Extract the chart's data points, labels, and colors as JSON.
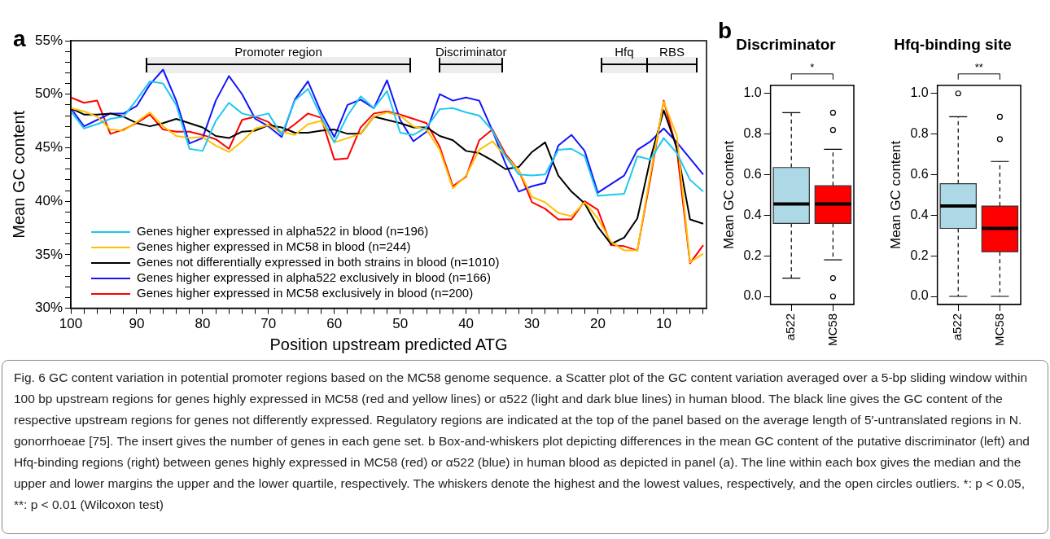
{
  "chart_data": [
    {
      "type": "line",
      "xlabel": "Position upstream predicted ATG",
      "ylabel": "Mean GC content",
      "marker": "none",
      "legend": "bottom left",
      "x": [
        100,
        98,
        96,
        94,
        92,
        90,
        88,
        86,
        84,
        82,
        80,
        78,
        76,
        74,
        72,
        70,
        68,
        66,
        64,
        62,
        60,
        58,
        56,
        54,
        52,
        50,
        48,
        46,
        44,
        42,
        40,
        38,
        36,
        34,
        32,
        30,
        28,
        26,
        24,
        22,
        20,
        18,
        16,
        14,
        12,
        10,
        8,
        6,
        4
      ],
      "xlim": [
        100,
        3.5
      ],
      "ylim": [
        30,
        55
      ],
      "xticks": [
        100,
        {
          "value": 98,
          "label": null
        },
        {
          "value": 96,
          "label": null
        },
        {
          "value": 94,
          "label": null
        },
        {
          "value": 92,
          "label": null
        },
        90,
        {
          "value": 88,
          "label": null
        },
        {
          "value": 86,
          "label": null
        },
        {
          "value": 84,
          "label": null
        },
        {
          "value": 82,
          "label": null
        },
        80,
        {
          "value": 78,
          "label": null
        },
        {
          "value": 76,
          "label": null
        },
        {
          "value": 74,
          "label": null
        },
        {
          "value": 72,
          "label": null
        },
        70,
        {
          "value": 68,
          "label": null
        },
        {
          "value": 66,
          "label": null
        },
        {
          "value": 64,
          "label": null
        },
        {
          "value": 62,
          "label": null
        },
        60,
        {
          "value": 58,
          "label": null
        },
        {
          "value": 56,
          "label": null
        },
        {
          "value": 54,
          "label": null
        },
        {
          "value": 52,
          "label": null
        },
        50,
        {
          "value": 48,
          "label": null
        },
        {
          "value": 46,
          "label": null
        },
        {
          "value": 44,
          "label": null
        },
        {
          "value": 42,
          "label": null
        },
        40,
        {
          "value": 38,
          "label": null
        },
        {
          "value": 36,
          "label": null
        },
        {
          "value": 34,
          "label": null
        },
        {
          "value": 32,
          "label": null
        },
        30,
        {
          "value": 28,
          "label": null
        },
        {
          "value": 26,
          "label": null
        },
        {
          "value": 24,
          "label": null
        },
        {
          "value": 22,
          "label": null
        },
        20,
        {
          "value": 18,
          "label": null
        },
        {
          "value": 16,
          "label": null
        },
        {
          "value": 14,
          "label": null
        },
        {
          "value": 12,
          "label": null
        },
        10,
        {
          "value": 8,
          "label": null
        },
        {
          "value": 6,
          "label": null
        },
        {
          "value": 4,
          "label": null
        }
      ],
      "yticks": [
        {
          "value": 30,
          "label": "30%"
        },
        {
          "value": 31,
          "label": null
        },
        {
          "value": 32,
          "label": null
        },
        {
          "value": 33,
          "label": null
        },
        {
          "value": 34,
          "label": null
        },
        {
          "value": 35,
          "label": "35%"
        },
        {
          "value": 36,
          "label": null
        },
        {
          "value": 37,
          "label": null
        },
        {
          "value": 38,
          "label": null
        },
        {
          "value": 39,
          "label": null
        },
        {
          "value": 40,
          "label": "40%"
        },
        {
          "value": 41,
          "label": null
        },
        {
          "value": 42,
          "label": null
        },
        {
          "value": 43,
          "label": null
        },
        {
          "value": 44,
          "label": null
        },
        {
          "value": 45,
          "label": "45%"
        },
        {
          "value": 46,
          "label": null
        },
        {
          "value": 47,
          "label": null
        },
        {
          "value": 48,
          "label": null
        },
        {
          "value": 49,
          "label": null
        },
        {
          "value": 50,
          "label": "50%"
        },
        {
          "value": 51,
          "label": null
        },
        {
          "value": 52,
          "label": null
        },
        {
          "value": 53,
          "label": null
        },
        {
          "value": 54,
          "label": null
        },
        {
          "value": 55,
          "label": "55%"
        }
      ],
      "bands": [
        {
          "axis": "x",
          "from": 88.5,
          "to": 48.5,
          "label": "Promoter region"
        },
        {
          "axis": "x",
          "from": 44,
          "to": 34.5,
          "label": "Discriminator"
        },
        {
          "axis": "x",
          "from": 19.5,
          "to": 12.5,
          "label": "Hfq"
        },
        {
          "axis": "x",
          "from": 12.5,
          "to": 5,
          "label": "RBS"
        }
      ],
      "series": [
        {
          "name": "Genes higher expressed in alpha522 in blood (n=196)",
          "color": "#1ec8f0",
          "values": [
            48.4,
            46.8,
            47.2,
            47.7,
            47.9,
            49.5,
            51.2,
            51.0,
            49.0,
            44.9,
            44.7,
            47.5,
            49.2,
            48.2,
            47.9,
            48.2,
            46.2,
            49.4,
            50.5,
            47.9,
            45.5,
            48.0,
            49.8,
            48.7,
            50.3,
            46.4,
            46.2,
            46.9,
            48.6,
            48.7,
            48.3,
            48.0,
            46.6,
            44.2,
            42.5,
            42.4,
            42.5,
            44.8,
            44.9,
            44.2,
            40.5,
            40.6,
            40.7,
            44.2,
            43.9,
            45.9,
            44.5,
            42.0,
            40.9
          ]
        },
        {
          "name": "Genes higher expressed in MC58 in blood (n=244)",
          "color": "#ffc000",
          "values": [
            48.7,
            48.4,
            47.9,
            46.7,
            46.6,
            47.4,
            48.3,
            47.0,
            46.1,
            45.9,
            46.0,
            45.2,
            44.6,
            45.6,
            46.8,
            47.1,
            46.5,
            46.2,
            47.2,
            47.5,
            45.5,
            45.9,
            46.3,
            47.9,
            48.3,
            48.0,
            47.0,
            46.7,
            44.8,
            41.2,
            42.4,
            44.8,
            45.6,
            44.2,
            42.9,
            40.4,
            39.9,
            38.9,
            38.6,
            39.9,
            38.4,
            36.2,
            35.4,
            35.4,
            42.6,
            49.3,
            46.1,
            34.3,
            35.1
          ]
        },
        {
          "name": "Genes not differentially expressed in both strains in blood (n=1010)",
          "color": "#000000",
          "values": [
            48.7,
            48.1,
            48.1,
            48.2,
            47.9,
            47.3,
            47.0,
            47.3,
            47.7,
            47.3,
            46.9,
            46.1,
            45.9,
            46.5,
            46.6,
            47.1,
            46.9,
            46.4,
            46.4,
            46.6,
            46.7,
            46.3,
            46.3,
            47.9,
            47.6,
            47.3,
            46.9,
            46.9,
            46.1,
            45.7,
            44.7,
            44.5,
            43.8,
            43.0,
            43.2,
            44.6,
            45.5,
            42.4,
            40.9,
            39.8,
            37.6,
            36.0,
            36.6,
            38.4,
            44.0,
            48.5,
            45.0,
            38.3,
            37.9
          ]
        },
        {
          "name": "Genes higher expressed in alpha522 exclusively in blood (n=166)",
          "color": "#1414ff",
          "values": [
            48.7,
            47.0,
            47.6,
            48.2,
            48.2,
            48.9,
            50.9,
            52.3,
            49.4,
            45.4,
            45.9,
            49.4,
            51.7,
            50.0,
            47.7,
            47.0,
            46.0,
            49.5,
            51.2,
            48.3,
            46.0,
            49.0,
            49.5,
            48.7,
            51.3,
            47.6,
            45.6,
            46.5,
            50.0,
            49.4,
            49.7,
            49.4,
            46.6,
            43.5,
            40.9,
            41.4,
            41.7,
            45.2,
            46.2,
            44.7,
            40.8,
            41.6,
            42.4,
            44.8,
            45.6,
            46.8,
            45.5,
            44.0,
            42.5
          ]
        },
        {
          "name": "Genes higher expressed in MC58 exclusively in blood (n=200)",
          "color": "#ff0000",
          "values": [
            49.7,
            49.2,
            49.4,
            46.3,
            46.7,
            47.3,
            48.1,
            46.7,
            46.5,
            46.5,
            46.2,
            45.8,
            44.9,
            47.6,
            47.9,
            47.4,
            46.3,
            47.2,
            48.2,
            47.8,
            43.9,
            44.0,
            46.9,
            48.2,
            48.4,
            48.1,
            47.7,
            47.3,
            45.1,
            41.4,
            42.3,
            45.7,
            46.7,
            44.4,
            42.9,
            39.9,
            39.3,
            38.3,
            38.3,
            40.0,
            39.2,
            35.9,
            35.8,
            35.4,
            42.2,
            49.4,
            44.8,
            34.2,
            35.9
          ]
        }
      ],
      "annotations": [
        "a",
        "Fig. 6 GC content variation in potential promoter regions based on the MC58 genome sequence. a Scatter plot of the GC content variation averaged over a 5-bp sliding window within 100 bp upstream regions for genes highly expressed in MC58 (red and yellow lines) or α522 (light and dark blue lines) in human blood. The black line gives the GC content of the respective upstream regions for genes not differently expressed. Regulatory regions are indicated at the top of the panel based on the average length of 5′-untranslated regions in N. gonorrhoeae [75]. The insert gives the number of genes in each gene set. b Box-and-whiskers plot depicting differences in the mean GC content of the putative discriminator (left) and Hfq-binding regions (right) between genes highly expressed in MC58 (red) or α522 (blue) in human blood as depicted in panel (a). The line within each box gives the median and the upper and lower margins the upper and the lower quartile, respectively. The whiskers denote the highest and the lowest values, respectively, and the open circles outliers. *: p < 0.05, **: p < 0.01 (Wilcoxon test)"
      ]
    },
    {
      "type": "box",
      "title": "Discriminator",
      "ylabel": "Mean GC content",
      "categories": [
        "a522",
        "MC58"
      ],
      "colors": [
        "#add8e6",
        "#ff0000"
      ],
      "ylim": [
        -0.04,
        1.04
      ],
      "yticks": [
        {
          "value": 0,
          "label": "0.0"
        },
        {
          "value": 0.2,
          "label": "0.2"
        },
        {
          "value": 0.4,
          "label": "0.4"
        },
        {
          "value": 0.6,
          "label": "0.6"
        },
        {
          "value": 0.8,
          "label": "0.8"
        },
        {
          "value": 1,
          "label": "1.0"
        }
      ],
      "boxes": [
        {
          "low": 0.09,
          "q1": 0.36,
          "median": 0.455,
          "q3": 0.635,
          "high": 0.905
        },
        {
          "low": 0.18,
          "q1": 0.36,
          "median": 0.455,
          "q3": 0.545,
          "high": 0.725,
          "outliers": [
            0.905,
            0.82,
            0.09,
            0.0
          ]
        }
      ],
      "annotations": [
        "b",
        "*"
      ]
    },
    {
      "type": "box",
      "title": "Hfq-binding site",
      "ylabel": "Mean GC content",
      "categories": [
        "a522",
        "MC58"
      ],
      "colors": [
        "#add8e6",
        "#ff0000"
      ],
      "ylim": [
        -0.04,
        1.04
      ],
      "yticks": [
        {
          "value": 0,
          "label": "0.0"
        },
        {
          "value": 0.2,
          "label": "0.2"
        },
        {
          "value": 0.4,
          "label": "0.4"
        },
        {
          "value": 0.6,
          "label": "0.6"
        },
        {
          "value": 0.8,
          "label": "0.8"
        },
        {
          "value": 1,
          "label": "1.0"
        }
      ],
      "boxes": [
        {
          "low": 0.0,
          "q1": 0.335,
          "median": 0.445,
          "q3": 0.555,
          "high": 0.885,
          "outliers": [
            1.0
          ]
        },
        {
          "low": 0.0,
          "q1": 0.22,
          "median": 0.335,
          "q3": 0.445,
          "high": 0.665,
          "outliers": [
            0.885,
            0.775
          ]
        }
      ],
      "annotations": [
        "**"
      ]
    }
  ]
}
